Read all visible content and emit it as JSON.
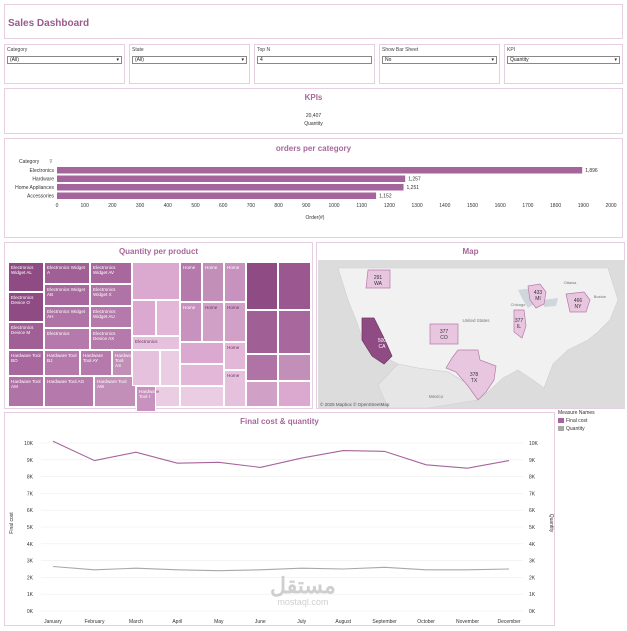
{
  "header": {
    "title": "Sales Dashboard"
  },
  "filters": [
    {
      "label": "Category",
      "value": "(All)"
    },
    {
      "label": "State",
      "value": "(All)"
    },
    {
      "label": "Top N",
      "value": "4"
    },
    {
      "label": "Show Bar Sheet",
      "value": "No"
    },
    {
      "label": "KPI",
      "value": "Quantity"
    }
  ],
  "kpi": {
    "title": "KPIs",
    "value": "20,407",
    "label": "Quantity"
  },
  "orders": {
    "title": "orders per category",
    "header": "Category",
    "axis_title": "Order(#)",
    "chart_data": {
      "type": "bar",
      "categories": [
        "Electronics",
        "Hardware",
        "Home Appliances",
        "Accessories"
      ],
      "values": [
        1896,
        1257,
        1251,
        1152
      ],
      "value_labels": [
        "1,896",
        "1,257",
        "1,251",
        "1,152"
      ],
      "xlim": [
        0,
        2000
      ],
      "ticks": [
        "0",
        "100",
        "200",
        "300",
        "400",
        "500",
        "600",
        "700",
        "800",
        "900",
        "1000",
        "1100",
        "1200",
        "1300",
        "1400",
        "1500",
        "1600",
        "1700",
        "1800",
        "1900",
        "2000"
      ]
    }
  },
  "quantity": {
    "title": "Quantity per product",
    "tiles": [
      "Electronics Widget AL",
      "Electronics Widget A",
      "Electronics Widget AV",
      "Electronics Device O",
      "Electronics Widget AB",
      "Electronics Widget X",
      "Electronics Widget AH",
      "Electronics Widget AU",
      "Electronics Device M",
      "Electronics",
      "Electronics Device AX",
      "Electronics",
      "Hardware Tool BO",
      "Hardware Tool BJ",
      "Hardware Tool AY",
      "Hardware Tool AS",
      "Hardware Tool AM",
      "Hardware Tool AG",
      "Hardware Tool I",
      "Hardware Tool AW",
      "Hardware",
      "Home",
      "Home",
      "Home",
      "Home",
      "Home",
      "Home",
      "Home",
      "Home"
    ]
  },
  "map": {
    "title": "Map",
    "attribution": "© 2025 Mapbox © OpenStreetMap",
    "places": [
      {
        "value": "291",
        "abbr": "WA"
      },
      {
        "value": "500",
        "abbr": "CA"
      },
      {
        "value": "377",
        "abbr": "CO"
      },
      {
        "value": "378",
        "abbr": "TX"
      },
      {
        "value": "433",
        "abbr": "MI"
      },
      {
        "value": "377",
        "abbr": "IL"
      },
      {
        "value": "466",
        "abbr": "NY"
      }
    ],
    "labels": [
      "United States",
      "Mexico",
      "Ottawa",
      "Chicago",
      "Boston"
    ]
  },
  "line": {
    "title": "Final cost & quantity",
    "y_axis_left": "Final cost",
    "y_axis_right": "Quantity",
    "chart_data": {
      "type": "line",
      "categories": [
        "January",
        "February",
        "March",
        "April",
        "May",
        "June",
        "July",
        "August",
        "September",
        "October",
        "November",
        "December"
      ],
      "ylim": [
        0,
        10000
      ],
      "yticks": [
        "0K",
        "1K",
        "2K",
        "3K",
        "4K",
        "5K",
        "6K",
        "7K",
        "8K",
        "9K",
        "10K"
      ],
      "series": [
        {
          "name": "Final cost",
          "color": "#a6649c",
          "values": [
            10100,
            8950,
            9450,
            8800,
            8850,
            8550,
            9100,
            9550,
            9500,
            8700,
            8500,
            8950
          ]
        },
        {
          "name": "Quantity",
          "color": "#a8a8a8",
          "values": [
            2650,
            2450,
            2550,
            2450,
            2400,
            2450,
            2550,
            2500,
            2600,
            2450,
            2450,
            2500
          ]
        }
      ]
    }
  },
  "legend": {
    "title": "Measure Names",
    "items": [
      {
        "label": "Final cost",
        "color": "#a6649c"
      },
      {
        "label": "Quantity",
        "color": "#a8a8a8"
      }
    ]
  },
  "watermark": {
    "arabic": "مستقل",
    "latin": "mostaql.com"
  }
}
